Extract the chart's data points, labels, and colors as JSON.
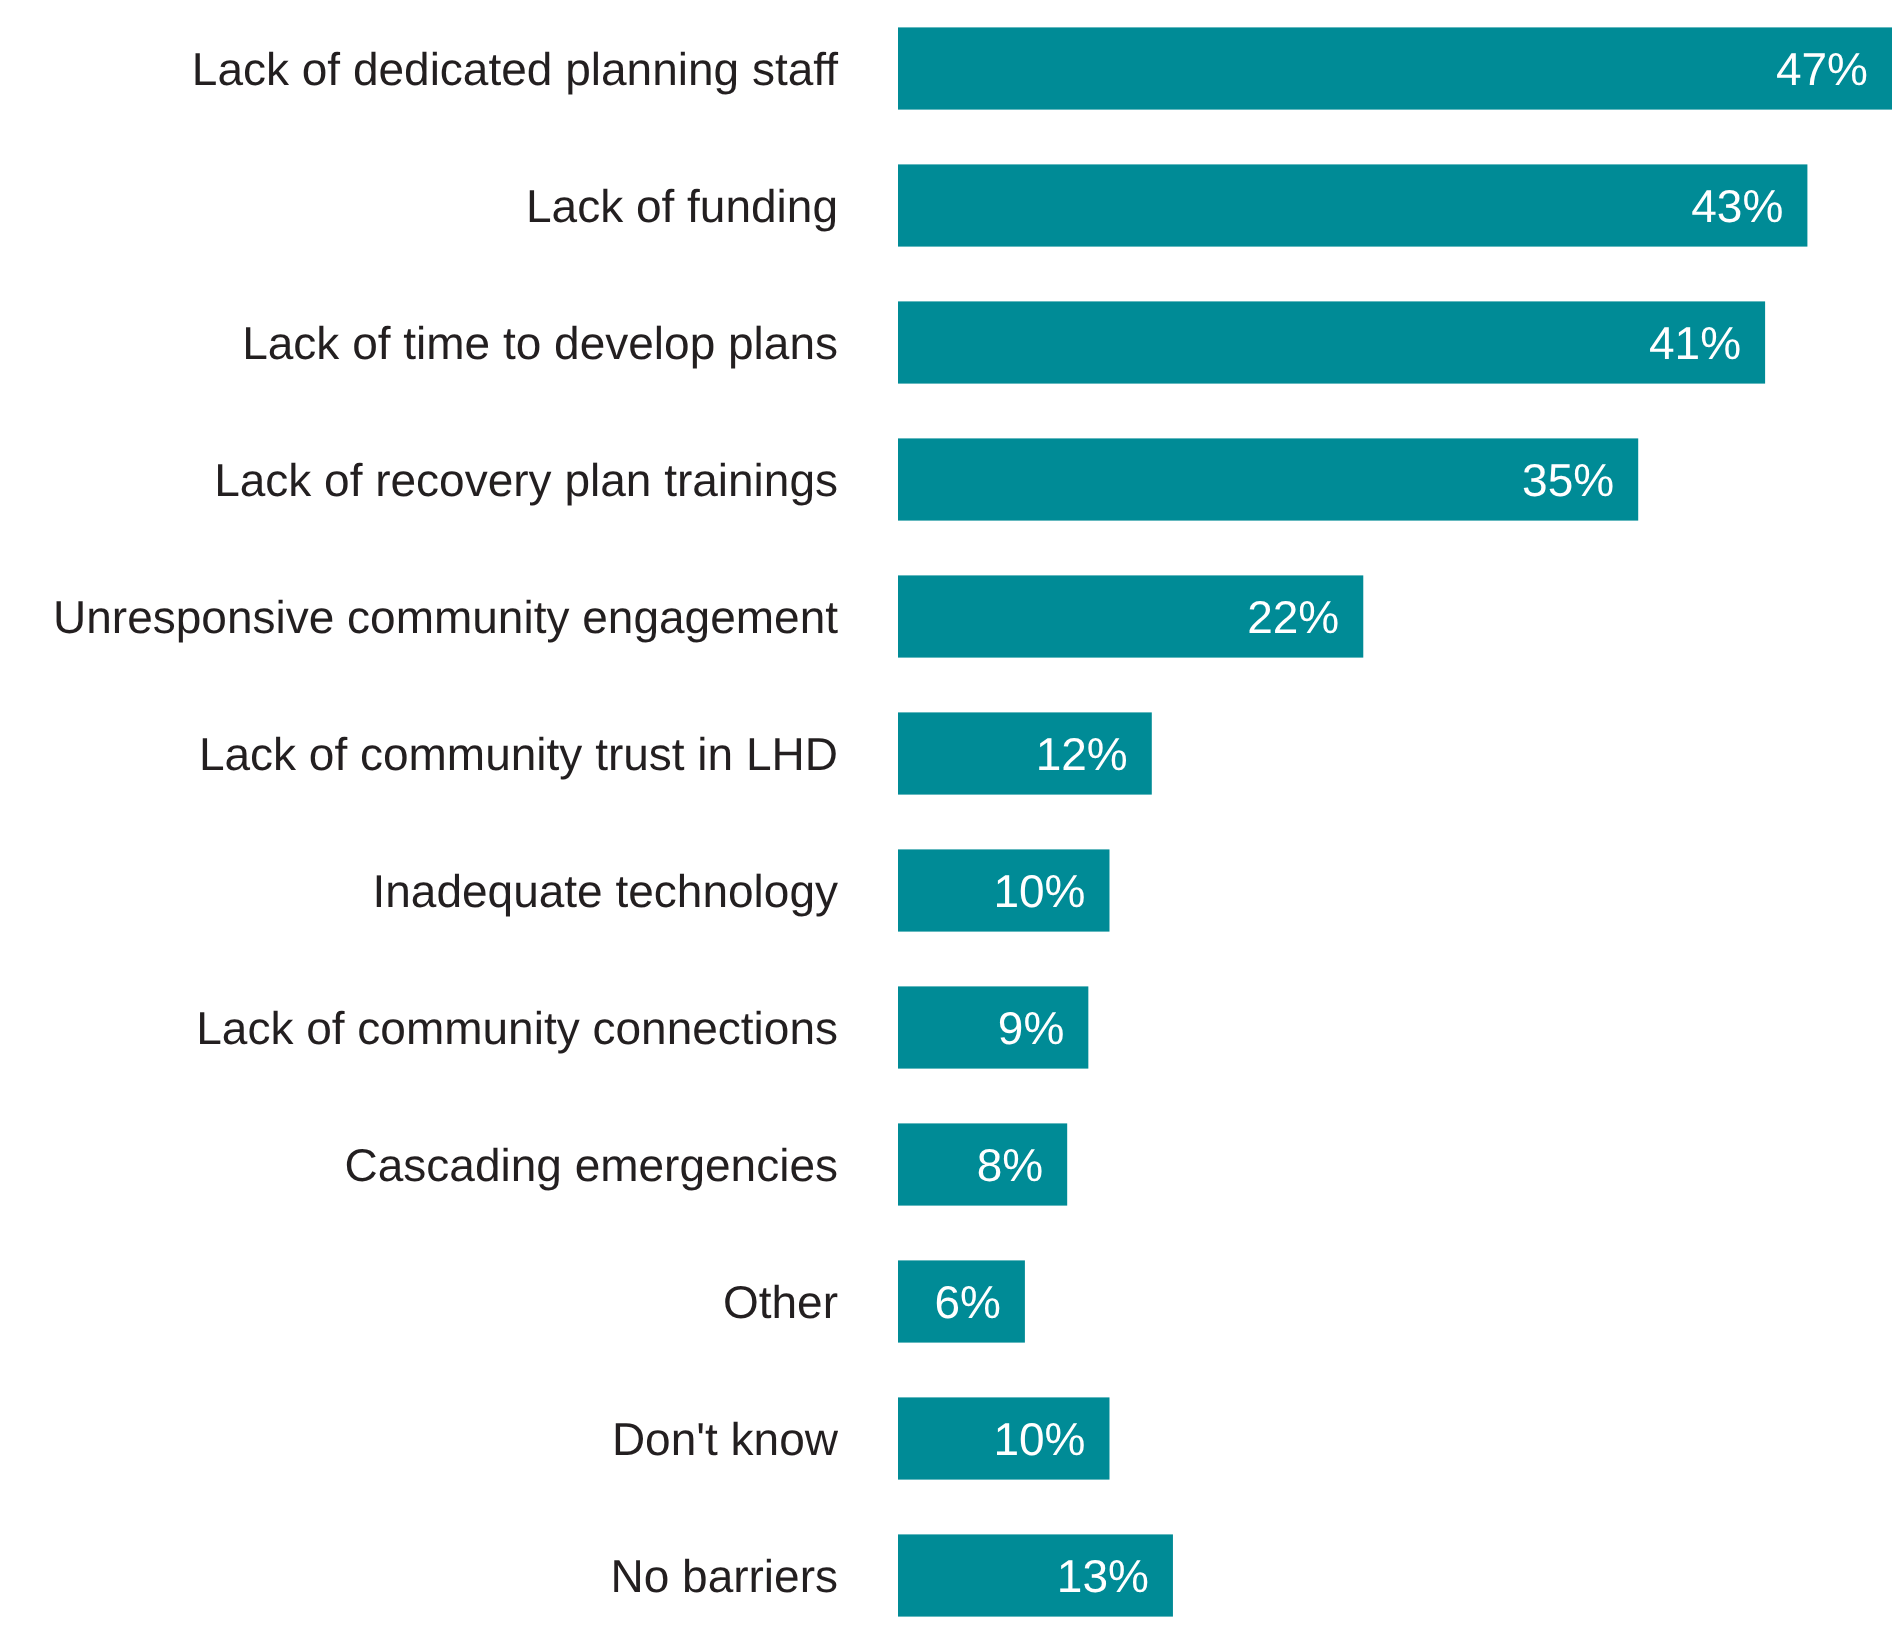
{
  "chart_data": {
    "type": "bar",
    "orientation": "horizontal",
    "color": "#008b96",
    "tick_labels": "y",
    "categories": [
      "Lack of dedicated planning staff",
      "Lack of funding",
      "Lack of time to develop plans",
      "Lack of recovery plan trainings",
      "Unresponsive community engagement",
      "Lack of community trust in LHD",
      "Inadequate technology",
      "Lack of community connections",
      "Cascading emergencies",
      "Other",
      "Don't know",
      "No barriers"
    ],
    "values": [
      47,
      43,
      41,
      35,
      22,
      12,
      10,
      9,
      8,
      6,
      10,
      13
    ],
    "value_labels": [
      "47%",
      "43%",
      "41%",
      "35%",
      "22%",
      "12%",
      "10%",
      "9%",
      "8%",
      "6%",
      "10%",
      "13%"
    ]
  }
}
